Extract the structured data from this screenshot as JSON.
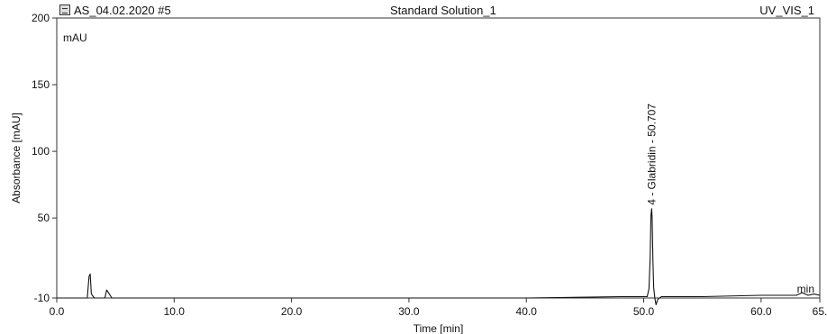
{
  "header": {
    "run_name": "AS_04.02.2020 #5",
    "sample_name": "Standard Solution_1",
    "channel": "UV_VIS_1"
  },
  "chart_data": {
    "type": "line",
    "title": "Standard Solution_1",
    "xlabel": "Time [min]",
    "ylabel": "Absorbance [mAU]",
    "y_unit_label": "mAU",
    "x_unit_label": "min",
    "xlim": [
      0.0,
      65.0
    ],
    "ylim": [
      -10,
      200
    ],
    "x_ticks": [
      {
        "value": 0,
        "label": "0.0"
      },
      {
        "value": 10,
        "label": "10.0"
      },
      {
        "value": 20,
        "label": "20.0"
      },
      {
        "value": 30,
        "label": "30.0"
      },
      {
        "value": 40,
        "label": "40.0"
      },
      {
        "value": 50,
        "label": "50.0"
      },
      {
        "value": 60,
        "label": "60.0"
      },
      {
        "value": 65,
        "label": "65."
      }
    ],
    "y_ticks": [
      {
        "value": -10,
        "label": "-10"
      },
      {
        "value": 50,
        "label": "50"
      },
      {
        "value": 100,
        "label": "100"
      },
      {
        "value": 150,
        "label": "150"
      },
      {
        "value": 200,
        "label": "200"
      }
    ],
    "series": [
      {
        "x": [
          0.0,
          2.6,
          2.75,
          2.85,
          2.95,
          3.2,
          4.1,
          4.25,
          4.4,
          4.7,
          10.0,
          20.0,
          30.0,
          40.0,
          48.0,
          50.3,
          50.45,
          50.55,
          50.62,
          50.68,
          50.72,
          50.78,
          50.85,
          50.95,
          51.05,
          51.2,
          51.5,
          55.0,
          60.0,
          63.0,
          63.5,
          64.0,
          64.5,
          65.0
        ],
        "y": [
          -10,
          -10,
          6,
          8,
          -7,
          -10,
          -10,
          -4,
          -6,
          -10,
          -10,
          -10,
          -10,
          -10,
          -9,
          -9,
          -3,
          20,
          52,
          57,
          50,
          20,
          -2,
          -10,
          -15,
          -11,
          -9,
          -9,
          -8,
          -8,
          -6,
          -8,
          -7,
          -8
        ]
      }
    ],
    "annotations": [
      {
        "x": 50.707,
        "y": 57,
        "text": "4 - Glabridin - 50.707"
      }
    ],
    "grid": false
  }
}
